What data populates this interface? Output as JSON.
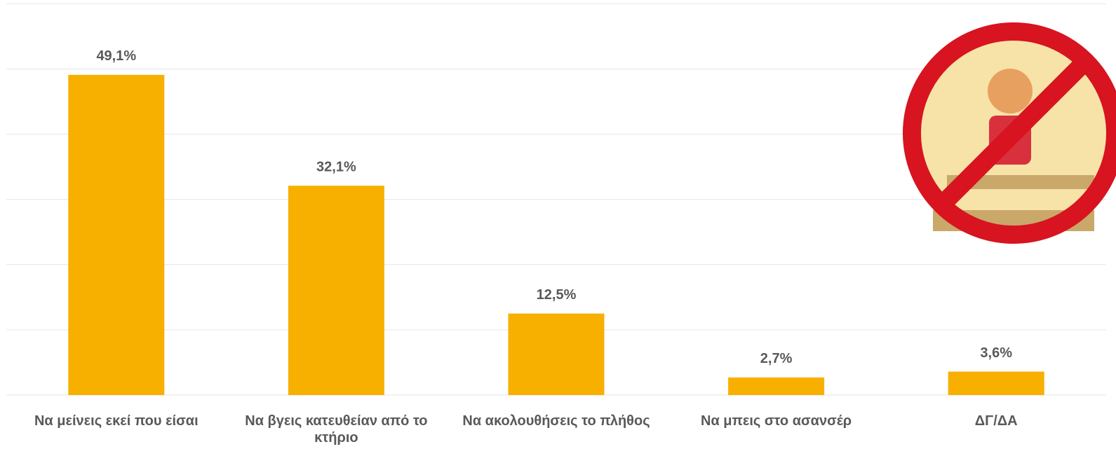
{
  "chart_data": {
    "type": "bar",
    "categories": [
      "Να μείνεις εκεί που είσαι",
      "Να βγεις κατευθείαν από το κτήριο",
      "Να ακολουθήσεις το πλήθος",
      "Να μπεις στο ασανσέρ",
      "ΔΓ/ΔΑ"
    ],
    "values": [
      49.1,
      32.1,
      12.5,
      2.7,
      3.6
    ],
    "value_labels": [
      "49,1%",
      "32,1%",
      "12,5%",
      "2,7%",
      "3,6%"
    ],
    "color": "#f8b000",
    "ylim": [
      0,
      60
    ],
    "yticks": [
      0,
      10,
      20,
      30,
      40,
      50,
      60
    ],
    "grid": true
  }
}
